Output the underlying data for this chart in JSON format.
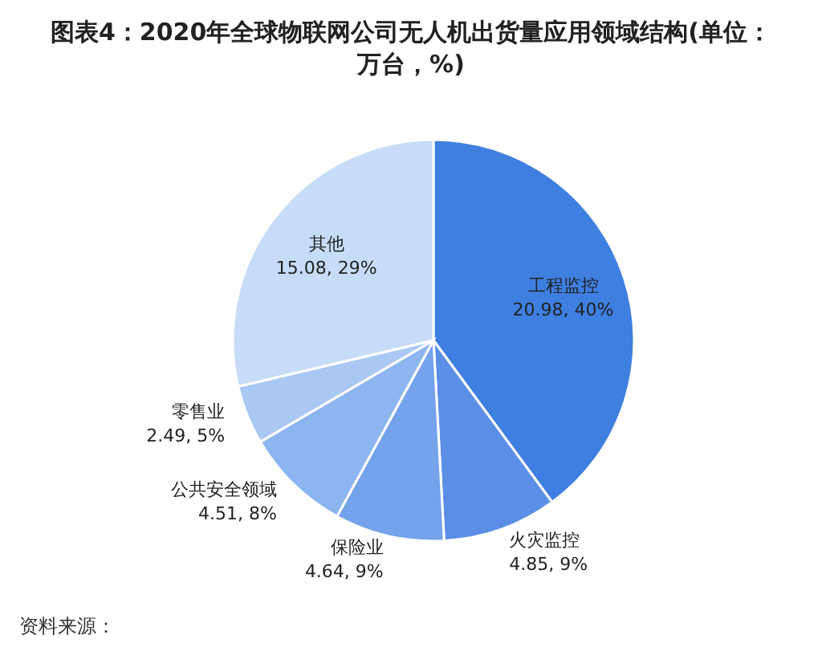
{
  "chart_data": {
    "type": "pie",
    "title": "图表4：2020年全球物联网公司无人机出货量应用领域结构(单位：万台，%)",
    "categories": [
      "工程监控",
      "火灾监控",
      "保险业",
      "公共安全领域",
      "零售业",
      "其他"
    ],
    "values": [
      20.98,
      4.85,
      4.64,
      4.51,
      2.49,
      15.08
    ],
    "value_labels": [
      "20.98, 40%",
      "4.85, 9%",
      "4.64, 9%",
      "4.51, 8%",
      "2.49, 5%",
      "15.08, 29%"
    ],
    "colors": [
      "#3f7fe0",
      "#5b8fe6",
      "#74a3eb",
      "#8db6f0",
      "#a9c8f4",
      "#c6dcf8"
    ],
    "annotations": [
      "资料来源："
    ]
  }
}
